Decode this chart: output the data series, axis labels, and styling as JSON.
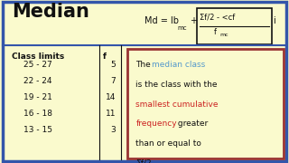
{
  "title": "Median",
  "bg_color": "#FAFACD",
  "outer_border_color": "#3355AA",
  "class_limits": [
    "25 - 27",
    "22 - 24",
    "19 - 21",
    "16 - 18",
    "13 - 15"
  ],
  "frequencies": [
    "5",
    "7",
    "14",
    "11",
    "3"
  ],
  "col_header_left": "Class limits",
  "col_header_right": "f",
  "box_border_color": "#993333",
  "text_black": "#111111",
  "text_blue": "#5599CC",
  "text_red": "#CC2222",
  "title_fontsize": 15,
  "body_fontsize": 6.5,
  "formula_fontsize": 7.0
}
